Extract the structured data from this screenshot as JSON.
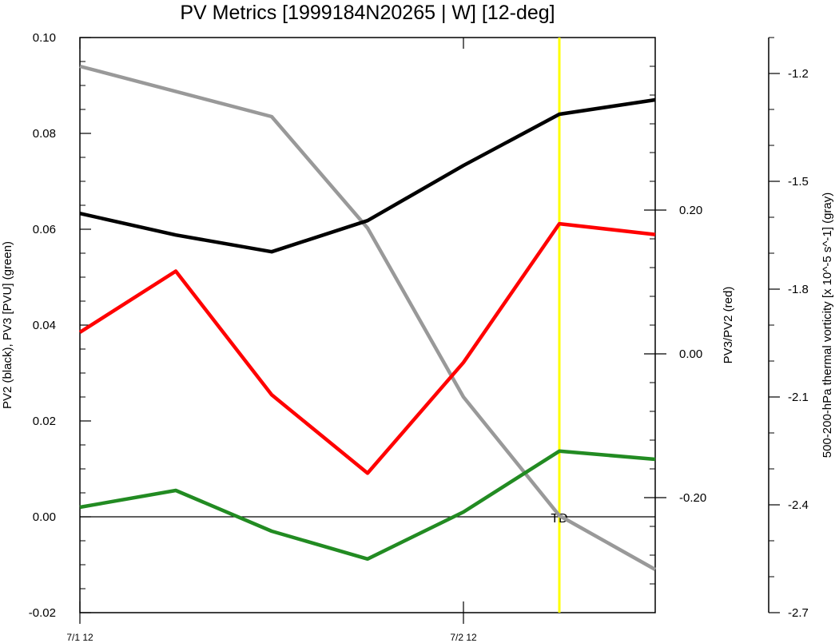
{
  "chart_data": {
    "type": "line",
    "title": "PV Metrics [1999184N20265 | W] [12-deg]",
    "x_ticks": [
      "7/1 12",
      "7/2 12"
    ],
    "x_tick_positions": [
      0,
      4
    ],
    "xlim": [
      0,
      6
    ],
    "axes": {
      "left": {
        "label": "PV2 (black), PV3 [PVU] (green)",
        "ylim": [
          -0.02,
          0.1
        ],
        "ticks": [
          "-0.02",
          "0.00",
          "0.02",
          "0.04",
          "0.06",
          "0.08",
          "0.10"
        ],
        "tick_values": [
          -0.02,
          0.0,
          0.02,
          0.04,
          0.06,
          0.08,
          0.1
        ],
        "minor_step": 0.005
      },
      "right": {
        "label": "PV3/PV2 (red)",
        "ylim": [
          -0.36,
          0.44
        ],
        "ticks": [
          "-0.20",
          "0.00",
          "0.20"
        ],
        "tick_values": [
          -0.2,
          0.0,
          0.2
        ],
        "minor_step": 0.04
      },
      "far_right": {
        "label": "500-200-hPa thermal vorticity [x 10^-5 s^-1] (gray)",
        "ylim": [
          -2.7,
          -1.1
        ],
        "ticks": [
          "-1.2",
          "-1.5",
          "-1.8",
          "-2.1",
          "-2.4",
          "-2.7"
        ],
        "tick_values": [
          -1.2,
          -1.5,
          -1.8,
          -2.1,
          -2.4,
          -2.7
        ],
        "minor_step": 0.1
      }
    },
    "series": [
      {
        "color": "#999999",
        "axis": "far_right",
        "x": [
          0,
          2,
          3,
          4,
          5,
          6
        ],
        "values": [
          -1.18,
          -1.32,
          -1.63,
          -2.1,
          -2.43,
          -2.58
        ]
      },
      {
        "color": "#000000",
        "axis": "left",
        "x": [
          0,
          1,
          2,
          3,
          4,
          5,
          6
        ],
        "values": [
          0.0633,
          0.0588,
          0.0553,
          0.0618,
          0.0733,
          0.084,
          0.087
        ]
      },
      {
        "color": "#ff0000",
        "axis": "right",
        "x": [
          0,
          1,
          2,
          3,
          4,
          5,
          6
        ],
        "values": [
          0.03,
          0.115,
          -0.057,
          -0.166,
          -0.012,
          0.181,
          0.166
        ]
      },
      {
        "color": "#228b22",
        "axis": "left",
        "x": [
          0,
          1,
          2,
          3,
          4,
          5,
          6
        ],
        "values": [
          0.002,
          0.0055,
          -0.003,
          -0.0088,
          0.001,
          0.0137,
          0.012
        ]
      }
    ],
    "reference_line": {
      "axis": "left",
      "value": 0.0,
      "color": "#000000"
    },
    "marker": {
      "x": 5,
      "label": "TD",
      "color": "#ffff00"
    }
  }
}
